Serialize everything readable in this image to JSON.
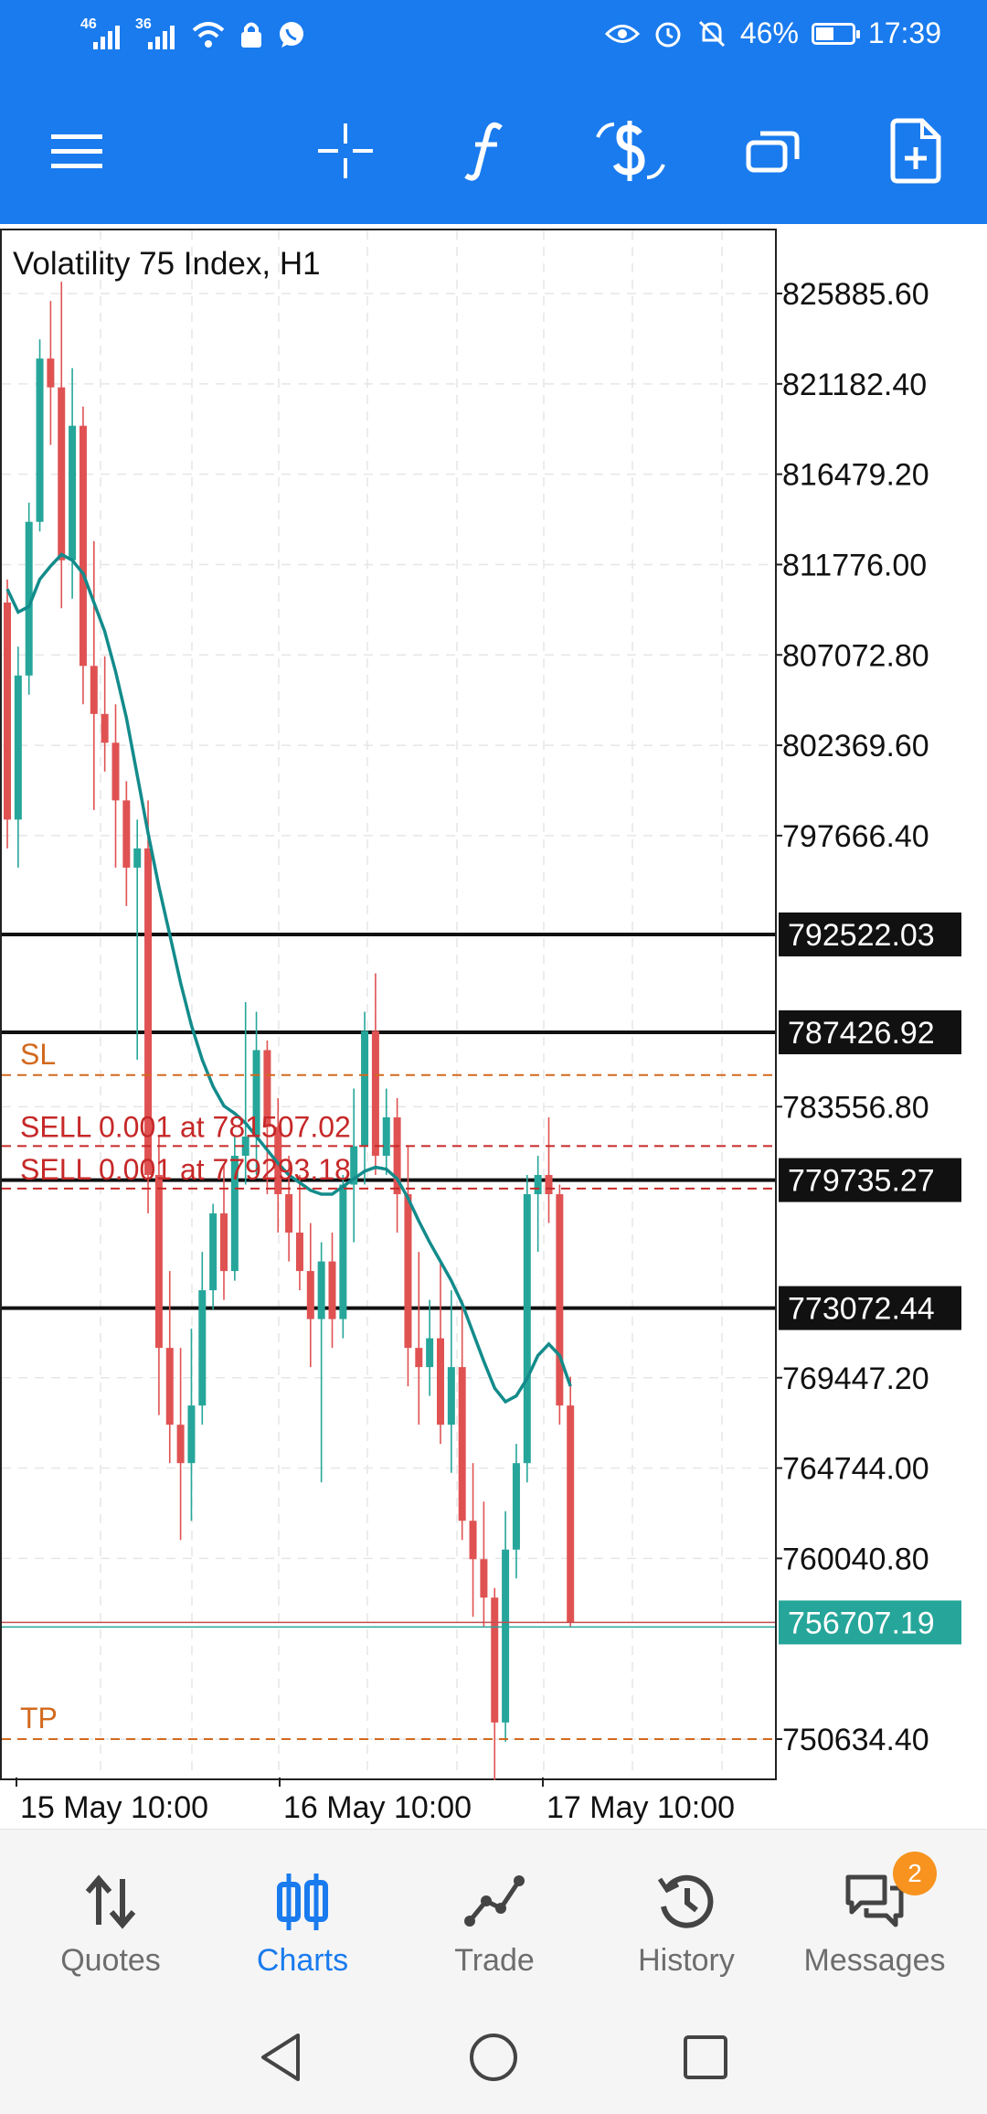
{
  "status_bar": {
    "network_1": "46",
    "network_2": "36",
    "battery": "46%",
    "time": "17:39",
    "icons": [
      "signal-icon",
      "signal-icon",
      "wifi-icon",
      "lock-icon",
      "whatsapp-icon",
      "eye-icon",
      "alarm-icon",
      "mute-icon",
      "battery-icon"
    ]
  },
  "toolbar": {
    "icons": [
      "menu-icon",
      "crosshair-icon",
      "indicator-f-icon",
      "trade-dollar-icon",
      "windows-icon",
      "new-order-icon"
    ]
  },
  "chart": {
    "title": "Volatility 75 Index, H1",
    "price_axis": [
      "825885.60",
      "821182.40",
      "816479.20",
      "811776.00",
      "807072.80",
      "802369.60",
      "797666.40",
      "783556.80",
      "769447.20",
      "764744.00",
      "760040.80",
      "750634.40"
    ],
    "hline_labels": [
      "792522.03",
      "787426.92",
      "779735.27",
      "773072.44"
    ],
    "current_price": "756707.19",
    "order_labels": {
      "sl": "SL",
      "tp": "TP",
      "sell1": "SELL 0.001 at 781507.02",
      "sell2": "SELL 0.001 at 779293.18"
    },
    "time_labels": [
      "15 May 10:00",
      "16 May 10:00",
      "17 May 10:00"
    ],
    "colors": {
      "bull": "#26a69a",
      "bear": "#e05252",
      "ma": "#138b8b",
      "sl_tp": "#d2691e",
      "order": "#c62828"
    }
  },
  "chart_data": {
    "type": "candlestick",
    "title": "Volatility 75 Index, H1",
    "ylim": [
      748000,
      828500
    ],
    "grid": true,
    "horizontal_lines": [
      792522.03,
      787426.92,
      779735.27,
      773072.44
    ],
    "current_price": 756707.19,
    "sl_level": 785200,
    "tp_level": 750634.4,
    "sell_orders": [
      781507.02,
      779293.18
    ],
    "candles": [
      [
        809800,
        811000,
        797000,
        798500
      ],
      [
        798500,
        807500,
        796000,
        806000
      ],
      [
        806000,
        815000,
        805000,
        814000
      ],
      [
        814000,
        823500,
        813500,
        822500
      ],
      [
        822500,
        825500,
        818000,
        821000
      ],
      [
        821000,
        826500,
        809500,
        812000
      ],
      [
        812000,
        822000,
        810000,
        819000
      ],
      [
        819000,
        820000,
        804500,
        806500
      ],
      [
        806500,
        813000,
        799000,
        804000
      ],
      [
        804000,
        807000,
        801000,
        802500
      ],
      [
        802500,
        804500,
        796000,
        799500
      ],
      [
        799500,
        800500,
        794000,
        796000
      ],
      [
        796000,
        798500,
        786000,
        797000
      ],
      [
        797000,
        799500,
        778000,
        780000
      ],
      [
        780000,
        782000,
        767500,
        771000
      ],
      [
        771000,
        775000,
        765000,
        767000
      ],
      [
        767000,
        771000,
        761000,
        765000
      ],
      [
        765000,
        772000,
        762000,
        768000
      ],
      [
        768000,
        776000,
        767000,
        774000
      ],
      [
        774000,
        778500,
        773000,
        778000
      ],
      [
        778000,
        780500,
        773500,
        775000
      ],
      [
        775000,
        782000,
        774500,
        781000
      ],
      [
        781000,
        789000,
        779500,
        782000
      ],
      [
        782000,
        788500,
        780000,
        786500
      ],
      [
        786500,
        787000,
        779000,
        782500
      ],
      [
        782500,
        784000,
        777000,
        779000
      ],
      [
        779000,
        781000,
        775500,
        777000
      ],
      [
        777000,
        780000,
        774000,
        775000
      ],
      [
        775000,
        777500,
        770000,
        772500
      ],
      [
        772500,
        776500,
        764000,
        775500
      ],
      [
        775500,
        777000,
        771000,
        772500
      ],
      [
        772500,
        780000,
        771500,
        779500
      ],
      [
        779500,
        784500,
        776500,
        781500
      ],
      [
        781500,
        788500,
        779500,
        787500
      ],
      [
        787500,
        790500,
        780000,
        781000
      ],
      [
        781000,
        784500,
        780000,
        783000
      ],
      [
        783000,
        784000,
        777000,
        779000
      ],
      [
        779000,
        781500,
        769000,
        771000
      ],
      [
        771000,
        776000,
        767000,
        770000
      ],
      [
        770000,
        773500,
        768500,
        771500
      ],
      [
        771500,
        775500,
        766000,
        767000
      ],
      [
        767000,
        774000,
        764500,
        770000
      ],
      [
        770000,
        773500,
        761000,
        762000
      ],
      [
        762000,
        765000,
        757000,
        760000
      ],
      [
        760000,
        763000,
        756500,
        758000
      ],
      [
        758000,
        758500,
        748500,
        751500
      ],
      [
        751500,
        762500,
        750500,
        760500
      ],
      [
        760500,
        766000,
        759000,
        765000
      ],
      [
        765000,
        780000,
        764000,
        779000
      ],
      [
        779000,
        781000,
        776000,
        780000
      ],
      [
        780000,
        783000,
        777500,
        779000
      ],
      [
        779000,
        779500,
        767000,
        768000
      ],
      [
        768000,
        769500,
        756500,
        756700
      ]
    ],
    "moving_average": [
      810500,
      809300,
      809600,
      811000,
      811700,
      812300,
      812000,
      811300,
      809800,
      808300,
      806200,
      803800,
      800800,
      797800,
      795000,
      792500,
      790000,
      787800,
      786000,
      784600,
      783600,
      783200,
      782700,
      782000,
      781300,
      780600,
      780000,
      779600,
      779200,
      779000,
      779000,
      779400,
      779800,
      780200,
      780400,
      780300,
      779800,
      778800,
      777600,
      776500,
      775500,
      774500,
      773300,
      771800,
      770300,
      768900,
      768200,
      768500,
      769400,
      770600,
      771200,
      770600,
      769000
    ]
  },
  "bottom_nav": {
    "items": [
      {
        "label": "Quotes",
        "icon": "arrows-updown-icon"
      },
      {
        "label": "Charts",
        "icon": "candles-icon"
      },
      {
        "label": "Trade",
        "icon": "trend-line-icon"
      },
      {
        "label": "History",
        "icon": "history-clock-icon"
      },
      {
        "label": "Messages",
        "icon": "chat-bubbles-icon",
        "badge": "2"
      }
    ],
    "active": "Charts"
  },
  "system_nav": {
    "icons": [
      "back-icon",
      "home-icon",
      "recents-icon"
    ]
  }
}
